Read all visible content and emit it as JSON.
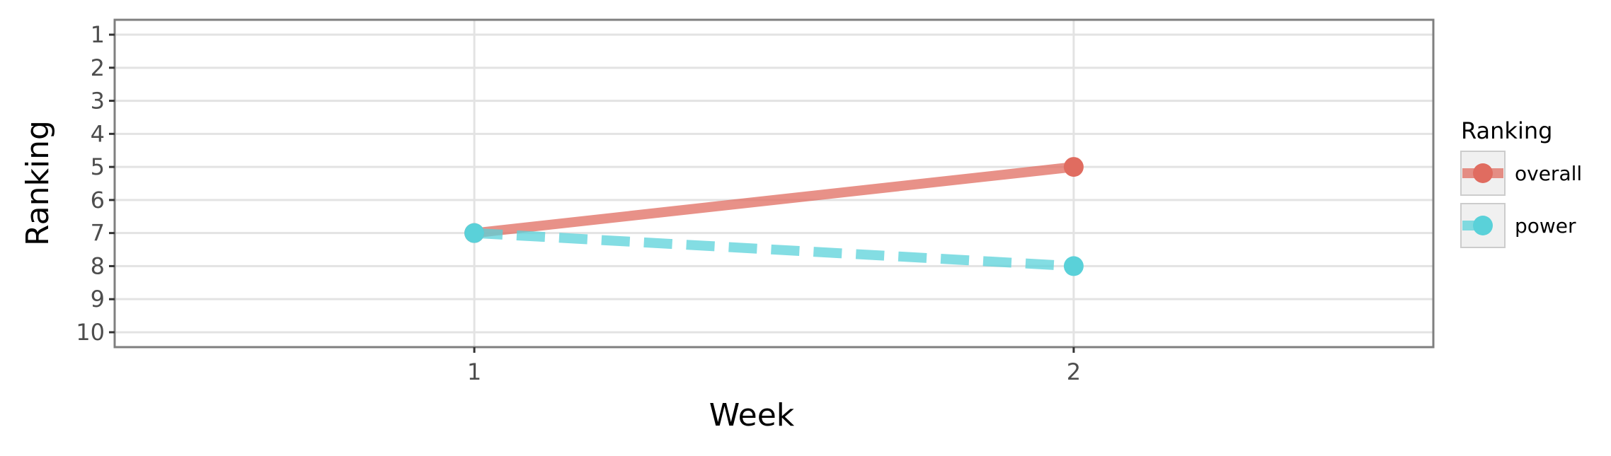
{
  "chart_data": {
    "type": "line",
    "x": [
      1,
      2
    ],
    "series": [
      {
        "name": "overall",
        "values": [
          7,
          5
        ],
        "color": "#e06c60",
        "line_style": "solid"
      },
      {
        "name": "power",
        "values": [
          7,
          8
        ],
        "color": "#5ad1d9",
        "line_style": "dashed"
      }
    ],
    "xlabel": "Week",
    "ylabel": "Ranking",
    "x_ticks": [
      "1",
      "2"
    ],
    "y_ticks": [
      "1",
      "2",
      "3",
      "4",
      "5",
      "6",
      "7",
      "8",
      "9",
      "10"
    ],
    "xlim": [
      0.4,
      2.6
    ],
    "ylim": [
      10.45,
      0.55
    ],
    "y_reversed": true,
    "grid": true,
    "legend": {
      "title": "Ranking",
      "placement": "right"
    }
  }
}
